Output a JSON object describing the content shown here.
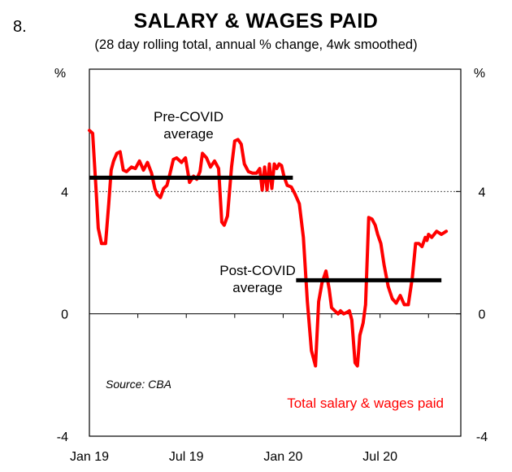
{
  "figure_number": "8.",
  "chart_data": {
    "type": "line",
    "title": "SALARY & WAGES PAID",
    "subtitle": "(28 day rolling total, annual % change, 4wk smoothed)",
    "ylabel_left": "%",
    "ylabel_right": "%",
    "ylim": [
      -4,
      8
    ],
    "yticks": [
      -4,
      0,
      4
    ],
    "ytick_labels": [
      "-4",
      "0",
      "4"
    ],
    "x_range_months": [
      0,
      23
    ],
    "xticks": [
      0,
      6,
      12,
      18
    ],
    "xtick_labels": [
      "Jan 19",
      "Jul 19",
      "Jan 20",
      "Jul 20"
    ],
    "source": "Source: CBA",
    "series": [
      {
        "name": "Total salary & wages paid",
        "color": "#ff0000",
        "x": [
          0,
          0.2,
          0.4,
          0.55,
          0.75,
          1.0,
          1.2,
          1.35,
          1.5,
          1.7,
          1.9,
          2.1,
          2.3,
          2.6,
          2.85,
          3.1,
          3.35,
          3.6,
          3.85,
          4.05,
          4.2,
          4.4,
          4.6,
          4.8,
          5.0,
          5.2,
          5.4,
          5.7,
          5.95,
          6.2,
          6.45,
          6.65,
          6.85,
          7.0,
          7.25,
          7.5,
          7.75,
          8.0,
          8.2,
          8.35,
          8.55,
          8.8,
          9.0,
          9.2,
          9.4,
          9.6,
          9.85,
          10.1,
          10.35,
          10.55,
          10.7,
          10.85,
          11.0,
          11.15,
          11.3,
          11.45,
          11.6,
          11.75,
          11.9,
          12.05,
          12.25,
          12.5,
          12.75,
          13.0,
          13.25,
          13.5,
          13.75,
          14.0,
          14.2,
          14.4,
          14.65,
          14.85,
          15.0,
          15.2,
          15.4,
          15.55,
          15.75,
          15.95,
          16.1,
          16.25,
          16.45,
          16.6,
          16.75,
          16.95,
          17.1,
          17.3,
          17.5,
          17.7,
          17.85,
          18.05,
          18.25,
          18.5,
          18.75,
          19.0,
          19.25,
          19.5,
          19.75,
          20.0,
          20.2,
          20.4,
          20.6,
          20.8,
          20.9,
          21.0,
          21.2,
          21.5,
          21.8,
          22.1
        ],
        "values": [
          6.0,
          5.9,
          4.2,
          2.8,
          2.3,
          2.3,
          3.6,
          4.7,
          5.0,
          5.25,
          5.3,
          4.7,
          4.65,
          4.8,
          4.75,
          5.0,
          4.7,
          4.95,
          4.6,
          4.1,
          3.9,
          3.8,
          4.1,
          4.2,
          4.6,
          5.05,
          5.1,
          4.95,
          5.1,
          4.3,
          4.5,
          4.4,
          4.65,
          5.25,
          5.1,
          4.8,
          5.0,
          4.75,
          3.0,
          2.9,
          3.2,
          4.8,
          5.65,
          5.7,
          5.55,
          4.9,
          4.65,
          4.6,
          4.6,
          4.75,
          4.05,
          4.8,
          4.05,
          4.9,
          4.1,
          4.9,
          4.75,
          4.9,
          4.85,
          4.5,
          4.2,
          4.15,
          3.9,
          3.6,
          2.5,
          0.4,
          -1.2,
          -1.7,
          0.4,
          1.0,
          1.4,
          0.8,
          0.2,
          0.1,
          0.0,
          0.1,
          0.0,
          0.05,
          0.1,
          -0.2,
          -1.6,
          -1.7,
          -0.7,
          -0.3,
          0.3,
          3.15,
          3.1,
          2.9,
          2.6,
          2.3,
          1.6,
          0.9,
          0.5,
          0.35,
          0.6,
          0.3,
          0.3,
          1.2,
          2.3,
          2.3,
          2.2,
          2.5,
          2.4,
          2.6,
          2.5,
          2.7,
          2.6,
          2.7
        ]
      },
      {
        "name": "Pre-COVID average",
        "color": "#000000",
        "x": [
          0,
          12.6
        ],
        "values": [
          4.45,
          4.45
        ]
      },
      {
        "name": "Post-COVID average",
        "color": "#000000",
        "x": [
          12.8,
          21.8
        ],
        "values": [
          1.1,
          1.1
        ]
      }
    ],
    "reference_line": {
      "y": 4,
      "style": "dotted"
    },
    "annotations": [
      {
        "lines": [
          "Pre-COVID",
          "average"
        ]
      },
      {
        "lines": [
          "Post-COVID",
          "average"
        ]
      }
    ]
  }
}
